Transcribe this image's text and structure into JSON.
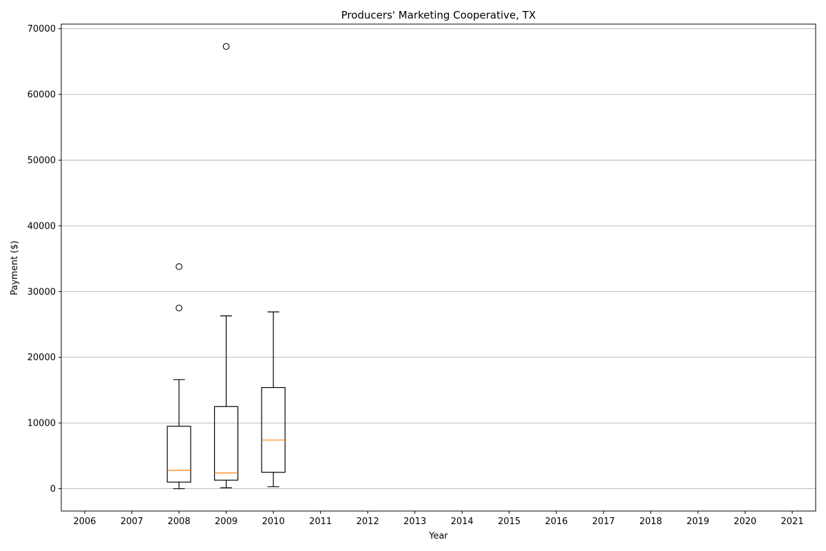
{
  "chart_data": {
    "type": "box",
    "title": "Producers' Marketing Cooperative, TX",
    "xlabel": "Year",
    "ylabel": "Payment ($)",
    "categories": [
      "2006",
      "2007",
      "2008",
      "2009",
      "2010",
      "2011",
      "2012",
      "2013",
      "2014",
      "2015",
      "2016",
      "2017",
      "2018",
      "2019",
      "2020",
      "2021"
    ],
    "y_ticks": [
      0,
      10000,
      20000,
      30000,
      40000,
      50000,
      60000,
      70000
    ],
    "ylim": [
      -3400,
      70700
    ],
    "grid": "y",
    "boxes": [
      {
        "category": "2008",
        "whisker_low": 0,
        "q1": 1000,
        "median": 2800,
        "q3": 9500,
        "whisker_high": 16600,
        "outliers": [
          27500,
          33800
        ]
      },
      {
        "category": "2009",
        "whisker_low": 150,
        "q1": 1300,
        "median": 2400,
        "q3": 12500,
        "whisker_high": 26300,
        "outliers": [
          67300
        ]
      },
      {
        "category": "2010",
        "whisker_low": 300,
        "q1": 2500,
        "median": 7400,
        "q3": 15400,
        "whisker_high": 26900,
        "outliers": []
      }
    ],
    "colors": {
      "box": "#000000",
      "median": "#ff7f0e",
      "grid": "#b0b0b0"
    }
  }
}
